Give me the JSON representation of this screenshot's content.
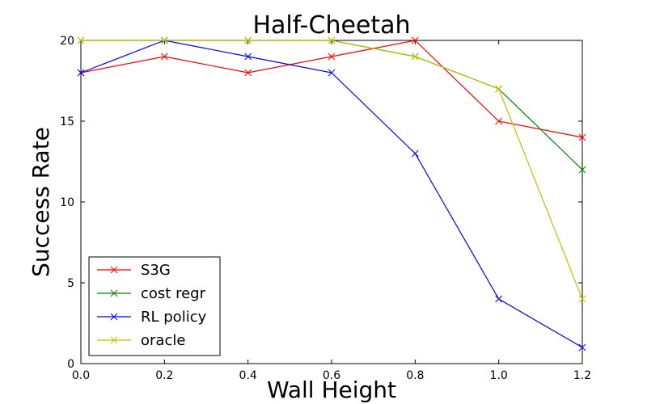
{
  "chart_data": {
    "type": "line",
    "title": "Half-Cheetah",
    "xlabel": "Wall Height",
    "ylabel": "Success Rate",
    "xlim": [
      0.0,
      1.2
    ],
    "ylim": [
      0,
      20
    ],
    "xticks": [
      "0.0",
      "0.2",
      "0.4",
      "0.6",
      "0.8",
      "1.0",
      "1.2"
    ],
    "yticks": [
      "0",
      "5",
      "10",
      "15",
      "20"
    ],
    "x": [
      0.0,
      0.2,
      0.4,
      0.6,
      0.8,
      1.0,
      1.2
    ],
    "marker": "x",
    "grid": false,
    "legend_position": "lower-left",
    "series": [
      {
        "name": "S3G",
        "color": "#ff0000",
        "values": [
          18,
          19,
          18,
          19,
          20,
          15,
          14
        ]
      },
      {
        "name": "cost regr",
        "color": "#008000",
        "values": [
          20,
          20,
          20,
          20,
          19,
          17,
          12
        ]
      },
      {
        "name": "RL policy",
        "color": "#0000ff",
        "values": [
          18,
          20,
          19,
          18,
          13,
          4,
          1
        ]
      },
      {
        "name": "oracle",
        "color": "#bfbf00",
        "values": [
          20,
          20,
          20,
          20,
          19,
          17,
          4
        ]
      }
    ]
  }
}
